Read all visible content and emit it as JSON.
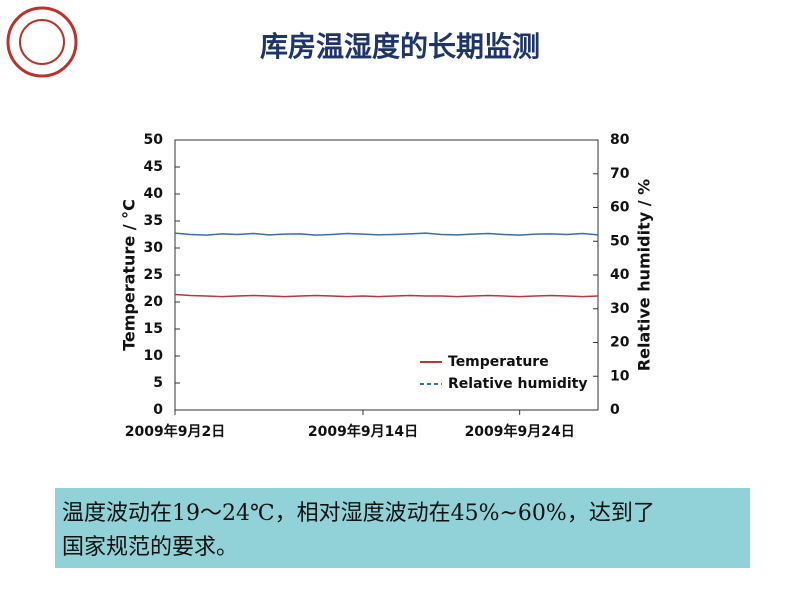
{
  "title": "库房温湿度的长期监测",
  "chart_data": {
    "type": "line",
    "ylabel": "Temperature / °C",
    "y2label": "Relative humidity / %",
    "x": [
      2,
      3,
      4,
      5,
      6,
      7,
      8,
      9,
      10,
      11,
      12,
      13,
      14,
      15,
      16,
      17,
      18,
      19,
      20,
      21,
      22,
      23,
      24,
      25,
      26,
      27,
      28,
      29
    ],
    "xlim": [
      2,
      29
    ],
    "xticks": [
      {
        "value": 2,
        "label": "2009年9月2日"
      },
      {
        "value": 14,
        "label": "2009年9月14日"
      },
      {
        "value": 24,
        "label": "2009年9月24日"
      }
    ],
    "ylim": [
      0,
      50
    ],
    "yticks": [
      0,
      5,
      10,
      15,
      20,
      25,
      30,
      35,
      40,
      45,
      50
    ],
    "y2lim": [
      0,
      80
    ],
    "y2ticks": [
      0,
      10,
      20,
      30,
      40,
      50,
      60,
      70,
      80
    ],
    "series": [
      {
        "name": "Temperature",
        "color": "#b23a3a",
        "values": [
          21.4,
          21.2,
          21.1,
          21.0,
          21.1,
          21.2,
          21.1,
          21.0,
          21.1,
          21.2,
          21.1,
          21.0,
          21.1,
          21.0,
          21.1,
          21.2,
          21.1,
          21.1,
          21.0,
          21.1,
          21.2,
          21.1,
          21.0,
          21.1,
          21.2,
          21.1,
          21.0,
          21.1
        ]
      },
      {
        "name": "Relative humidity",
        "color": "#3a6ea5",
        "axis": "y2",
        "values": [
          52.4,
          52.0,
          51.8,
          52.2,
          52.0,
          52.3,
          51.9,
          52.1,
          52.2,
          51.8,
          52.0,
          52.3,
          52.1,
          51.9,
          52.0,
          52.2,
          52.4,
          52.0,
          51.9,
          52.1,
          52.3,
          52.0,
          51.8,
          52.1,
          52.2,
          52.0,
          52.3,
          51.9
        ]
      }
    ],
    "legend": "lower-right"
  },
  "caption": [
    "温度波动在19～24℃，相对湿度波动在45%~60%，达到了",
    "国家规范的要求。"
  ]
}
